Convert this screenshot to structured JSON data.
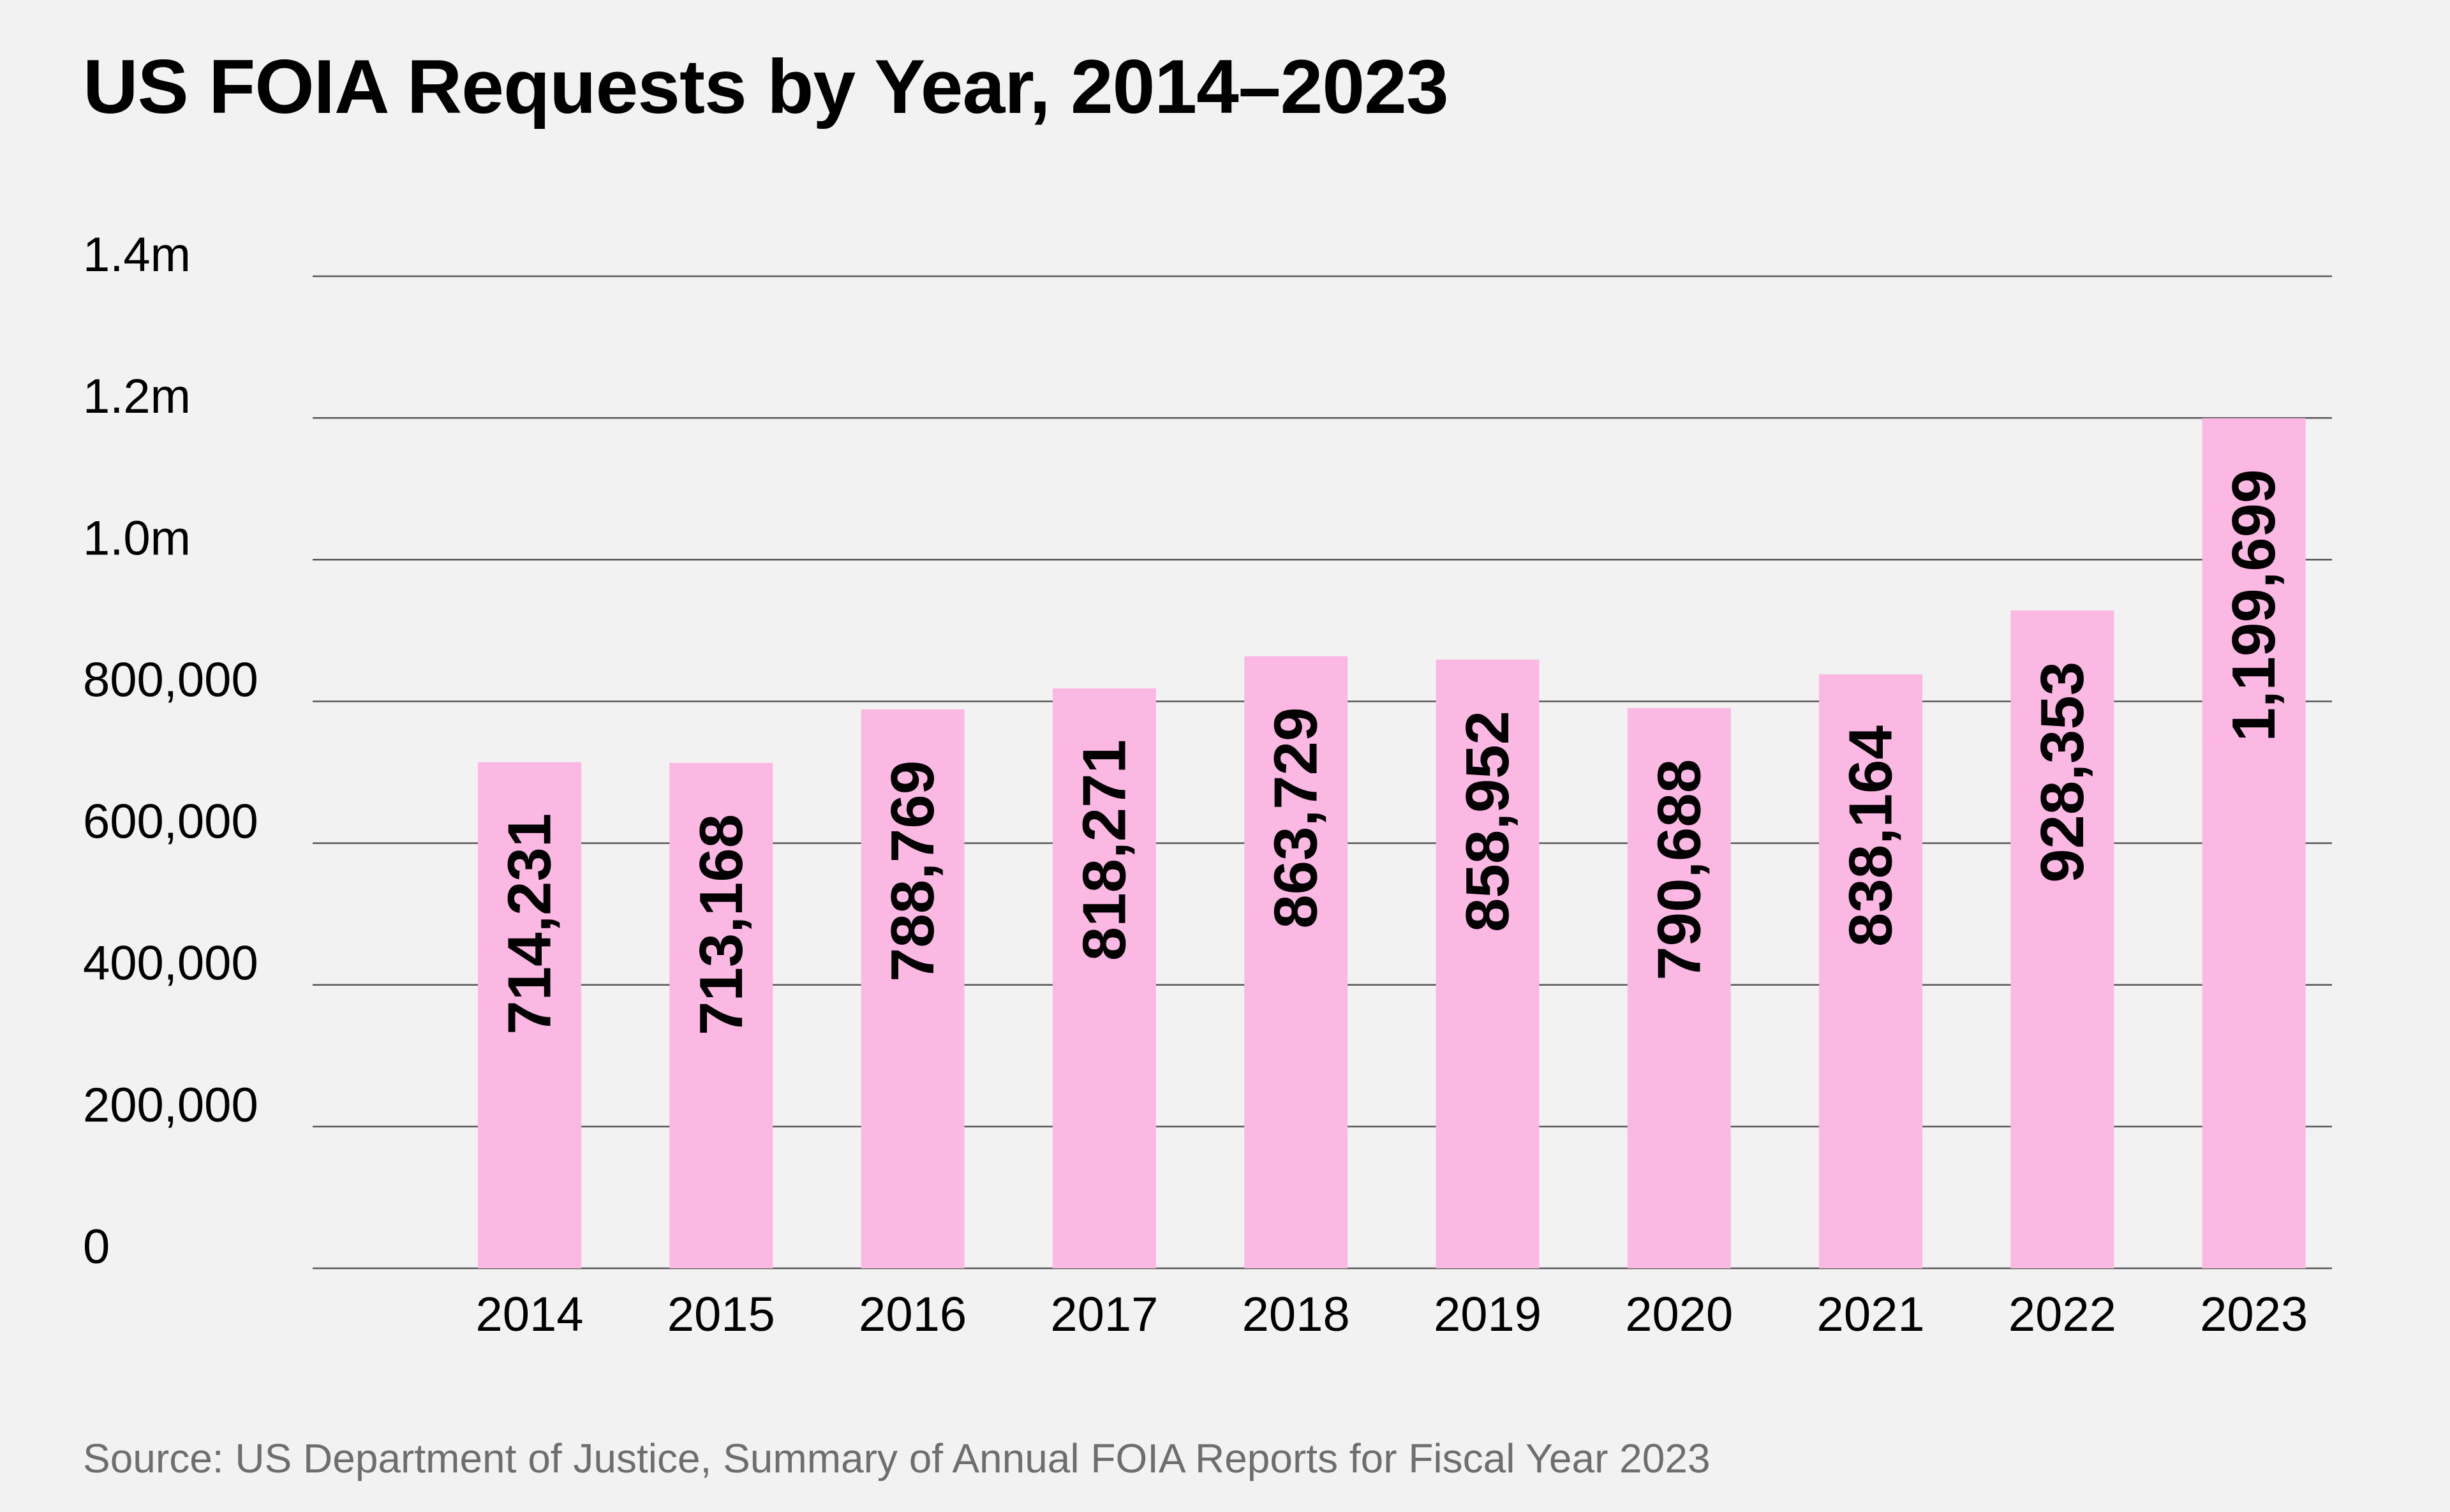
{
  "chart_data": {
    "type": "bar",
    "title": "US FOIA Requests by Year, 2014–2023",
    "source": "Source: US Department of Justice, Summary of Annual FOIA Reports for Fiscal Year 2023",
    "xlabel": "",
    "ylabel": "",
    "categories": [
      "2014",
      "2015",
      "2016",
      "2017",
      "2018",
      "2019",
      "2020",
      "2021",
      "2022",
      "2023"
    ],
    "values": [
      714231,
      713168,
      788769,
      818271,
      863729,
      858952,
      790688,
      838164,
      928353,
      1199699
    ],
    "data_labels": [
      "714,231",
      "713,168",
      "788,769",
      "818,271",
      "863,729",
      "858,952",
      "790,688",
      "838,164",
      "928,353",
      "1,199,699"
    ],
    "ylim": [
      0,
      1400000
    ],
    "yticks": [
      0,
      200000,
      400000,
      600000,
      800000,
      1000000,
      1200000,
      1400000
    ],
    "ytick_labels": [
      "0",
      "200,000",
      "400,000",
      "600,000",
      "800,000",
      "1.0m",
      "1.2m",
      "1.4m"
    ],
    "grid": true,
    "legend": "none",
    "colors": {
      "bar": "#fbb8e2",
      "grid": "#555555",
      "background": "#f2f2f2",
      "text": "#000000",
      "source_text": "#6e6e6e"
    }
  }
}
